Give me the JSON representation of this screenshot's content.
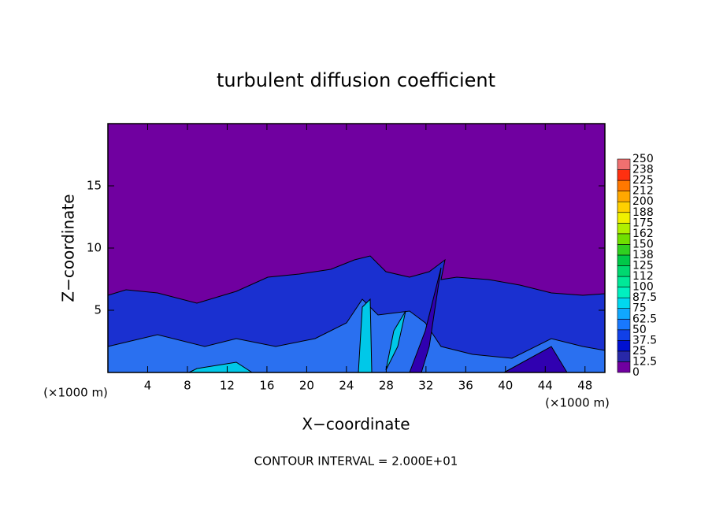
{
  "chart_data": {
    "type": "contour",
    "title": "turbulent diffusion coefficient",
    "xlabel": "X−coordinate",
    "ylabel": "Z−coordinate",
    "x_unit": "(×1000 m)",
    "y_unit": "(×1000 m)",
    "footnote": "CONTOUR INTERVAL = 2.000E+01",
    "xlim": [
      0,
      50
    ],
    "ylim": [
      0,
      20
    ],
    "xticks": [
      4,
      8,
      12,
      16,
      20,
      24,
      28,
      32,
      36,
      40,
      44,
      48
    ],
    "yticks": [
      5,
      10,
      15
    ],
    "colorbar": {
      "levels": [
        0,
        12.5,
        25,
        37.5,
        50,
        62.5,
        75,
        87.5,
        100,
        {
          "value": 112.5,
          "label": "112"
        },
        125,
        {
          "value": 137.5,
          "label": "138"
        },
        150,
        {
          "value": 162.5,
          "label": "162"
        },
        175,
        {
          "value": 187.5,
          "label": "188"
        },
        200,
        {
          "value": 212.5,
          "label": "212"
        },
        225,
        {
          "value": 237.5,
          "label": "238"
        },
        250
      ],
      "colors": [
        "#7000a0",
        "#2828a8",
        "#0010d0",
        "#1040e8",
        "#1878ff",
        "#10a8ff",
        "#00d8f0",
        "#00f0c0",
        "#00e898",
        "#00d870",
        "#00c848",
        "#30d020",
        "#70e000",
        "#b0f000",
        "#f0f000",
        "#ffd000",
        "#ffa800",
        "#ff7800",
        "#ff3010",
        "#f07070"
      ]
    }
  }
}
